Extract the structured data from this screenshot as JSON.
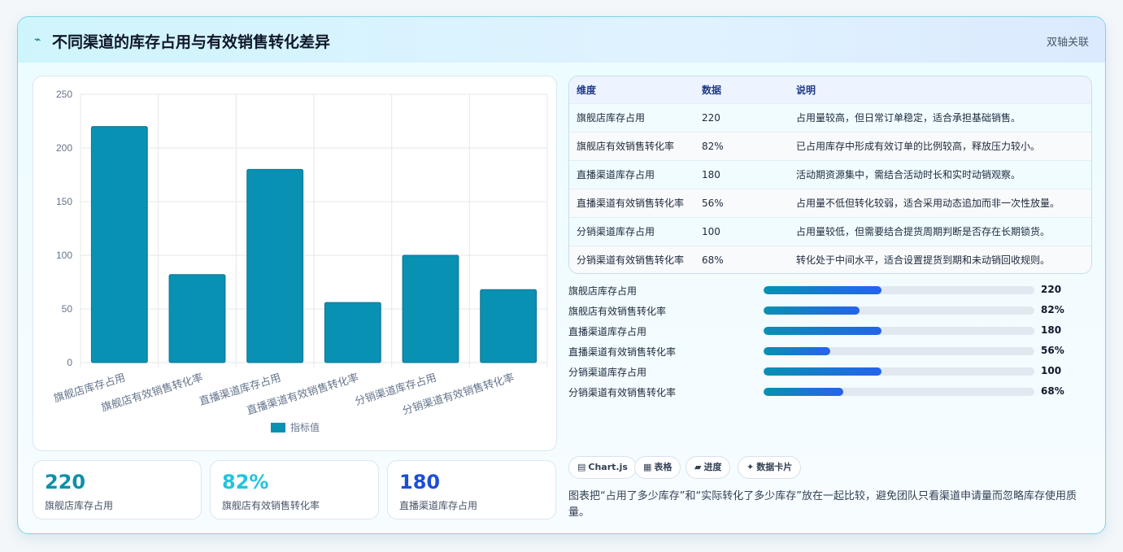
{
  "header": {
    "icon": "pulse-icon",
    "title": "不同渠道的库存占用与有效销售转化差异",
    "tag": "双轴关联"
  },
  "chart_data": {
    "type": "bar",
    "categories": [
      "旗舰店库存占用",
      "旗舰店有效销售转化率",
      "直播渠道库存占用",
      "直播渠道有效销售转化率",
      "分销渠道库存占用",
      "分销渠道有效销售转化率"
    ],
    "series": [
      {
        "name": "指标值",
        "values": [
          220,
          82,
          180,
          56,
          100,
          68
        ],
        "color": "#0891b2"
      }
    ],
    "ylim": [
      0,
      250
    ],
    "yticks": [
      0,
      50,
      100,
      150,
      200,
      250
    ],
    "grid": true,
    "legend": "bottom"
  },
  "table": {
    "headers": [
      "维度",
      "数据",
      "说明"
    ],
    "rows": [
      [
        "旗舰店库存占用",
        "220",
        "占用量较高，但日常订单稳定，适合承担基础销售。"
      ],
      [
        "旗舰店有效销售转化率",
        "82%",
        "已占用库存中形成有效订单的比例较高，释放压力较小。"
      ],
      [
        "直播渠道库存占用",
        "180",
        "活动期资源集中，需结合活动时长和实时动销观察。"
      ],
      [
        "直播渠道有效销售转化率",
        "56%",
        "占用量不低但转化较弱，适合采用动态追加而非一次性放量。"
      ],
      [
        "分销渠道库存占用",
        "100",
        "占用量较低，但需要结合提货周期判断是否存在长期锁货。"
      ],
      [
        "分销渠道有效销售转化率",
        "68%",
        "转化处于中间水平，适合设置提货到期和未动销回收规则。"
      ]
    ]
  },
  "progress": [
    {
      "label": "旗舰店库存占用",
      "value": "220",
      "fraction": 0.435
    },
    {
      "label": "旗舰店有效销售转化率",
      "value": "82%",
      "fraction": 0.355
    },
    {
      "label": "直播渠道库存占用",
      "value": "180",
      "fraction": 0.435
    },
    {
      "label": "直播渠道有效销售转化率",
      "value": "56%",
      "fraction": 0.245
    },
    {
      "label": "分销渠道库存占用",
      "value": "100",
      "fraction": 0.435
    },
    {
      "label": "分销渠道有效销售转化率",
      "value": "68%",
      "fraction": 0.295
    }
  ],
  "stats": [
    {
      "value": "220",
      "label": "旗舰店库存占用",
      "color": "#0e8fa8"
    },
    {
      "value": "82%",
      "label": "旗舰店有效销售转化率",
      "color": "#22c4dc"
    },
    {
      "value": "180",
      "label": "直播渠道库存占用",
      "color": "#1d4ed8"
    }
  ],
  "chips": [
    {
      "icon": "chart-icon",
      "glyph": "▤",
      "label": "Chart.js"
    },
    {
      "icon": "table-icon",
      "glyph": "▦",
      "label": "表格"
    },
    {
      "icon": "progress-icon",
      "glyph": "▰",
      "label": "进度"
    },
    {
      "icon": "card-icon",
      "glyph": "✦",
      "label": "数据卡片"
    }
  ],
  "description": "图表把“占用了多少库存”和“实际转化了多少库存”放在一起比较，避免团队只看渠道申请量而忽略库存使用质量。"
}
